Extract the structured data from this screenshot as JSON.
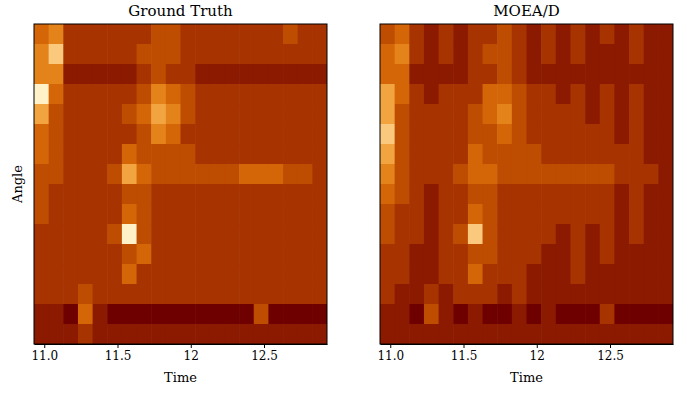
{
  "chart_data": [
    {
      "type": "heatmap",
      "title": "Ground Truth",
      "x_label": "Time",
      "y_label": "Angle",
      "tick_labels": "x",
      "x": [
        10.98,
        11.08,
        11.18,
        11.28,
        11.38,
        11.48,
        11.58,
        11.68,
        11.78,
        11.88,
        11.98,
        12.08,
        12.18,
        12.28,
        12.38,
        12.48,
        12.58,
        12.68,
        12.78,
        12.88
      ],
      "xlim": [
        10.93,
        12.93
      ],
      "xticks": [
        {
          "value": 11,
          "label": "11.0"
        },
        11.5,
        12,
        12.5
      ],
      "values": [
        [
          5,
          6,
          3,
          3,
          3,
          3,
          3,
          3,
          4,
          4,
          3,
          3,
          3,
          3,
          3,
          3,
          3,
          4,
          3,
          3
        ],
        [
          6,
          8,
          3,
          3,
          3,
          3,
          3,
          4,
          4,
          4,
          3,
          3,
          3,
          3,
          3,
          3,
          3,
          3,
          3,
          3
        ],
        [
          6,
          6,
          2,
          2,
          2,
          2,
          2,
          3,
          4,
          3,
          3,
          2,
          2,
          2,
          2,
          2,
          2,
          2,
          2,
          2
        ],
        [
          9,
          5,
          3,
          3,
          3,
          3,
          3,
          4,
          6,
          5,
          4,
          3,
          3,
          3,
          3,
          3,
          3,
          3,
          3,
          3
        ],
        [
          7,
          4,
          3,
          3,
          3,
          3,
          4,
          5,
          7,
          6,
          4,
          3,
          3,
          3,
          3,
          3,
          3,
          3,
          3,
          3
        ],
        [
          5,
          4,
          3,
          3,
          3,
          3,
          3,
          4,
          6,
          5,
          3,
          3,
          3,
          3,
          3,
          3,
          3,
          3,
          3,
          3
        ],
        [
          5,
          4,
          3,
          3,
          3,
          3,
          5,
          4,
          4,
          4,
          4,
          3,
          3,
          3,
          3,
          3,
          3,
          3,
          3,
          3
        ],
        [
          4,
          4,
          3,
          3,
          3,
          4,
          7,
          5,
          4,
          4,
          4,
          4,
          4,
          4,
          5,
          5,
          5,
          4,
          4,
          3
        ],
        [
          4,
          3,
          3,
          3,
          3,
          3,
          4,
          4,
          3,
          3,
          3,
          3,
          3,
          3,
          3,
          3,
          3,
          3,
          3,
          3
        ],
        [
          4,
          3,
          3,
          3,
          3,
          3,
          5,
          4,
          3,
          3,
          3,
          3,
          3,
          3,
          3,
          3,
          3,
          3,
          3,
          3
        ],
        [
          3,
          3,
          3,
          3,
          3,
          4,
          9,
          4,
          3,
          3,
          3,
          3,
          3,
          3,
          3,
          3,
          3,
          3,
          3,
          3
        ],
        [
          3,
          3,
          3,
          3,
          3,
          3,
          4,
          5,
          3,
          3,
          3,
          3,
          3,
          3,
          3,
          3,
          3,
          3,
          3,
          3
        ],
        [
          3,
          3,
          3,
          3,
          3,
          3,
          5,
          3,
          3,
          3,
          3,
          3,
          3,
          3,
          3,
          3,
          3,
          3,
          3,
          3
        ],
        [
          3,
          3,
          3,
          4,
          3,
          3,
          3,
          3,
          3,
          3,
          3,
          3,
          3,
          3,
          3,
          3,
          3,
          3,
          3,
          3
        ],
        [
          2,
          2,
          1,
          5,
          2,
          1,
          1,
          1,
          1,
          1,
          1,
          1,
          1,
          1,
          1,
          4,
          1,
          1,
          1,
          1
        ],
        [
          2,
          2,
          2,
          3,
          2,
          2,
          2,
          2,
          2,
          2,
          2,
          2,
          2,
          2,
          2,
          2,
          2,
          2,
          2,
          2
        ]
      ]
    },
    {
      "type": "heatmap",
      "title": "MOEA/D",
      "x_label": "Time",
      "tick_labels": "x",
      "x": [
        10.98,
        11.08,
        11.18,
        11.28,
        11.38,
        11.48,
        11.58,
        11.68,
        11.78,
        11.88,
        11.98,
        12.08,
        12.18,
        12.28,
        12.38,
        12.48,
        12.58,
        12.68,
        12.78,
        12.88
      ],
      "xlim": [
        10.93,
        12.93
      ],
      "xticks": [
        {
          "value": 11,
          "label": "11.0"
        },
        11.5,
        12,
        12.5
      ],
      "values": [
        [
          4,
          5,
          3,
          2,
          3,
          2,
          3,
          3,
          4,
          3,
          2,
          3,
          2,
          3,
          2,
          3,
          2,
          3,
          2,
          2
        ],
        [
          5,
          6,
          3,
          2,
          3,
          2,
          3,
          4,
          4,
          3,
          2,
          3,
          2,
          3,
          2,
          2,
          2,
          3,
          2,
          2
        ],
        [
          5,
          5,
          2,
          2,
          2,
          2,
          3,
          3,
          4,
          3,
          2,
          2,
          2,
          2,
          2,
          2,
          2,
          2,
          2,
          2
        ],
        [
          7,
          5,
          3,
          2,
          3,
          3,
          3,
          5,
          5,
          4,
          3,
          3,
          2,
          3,
          2,
          3,
          2,
          3,
          2,
          2
        ],
        [
          7,
          4,
          3,
          3,
          3,
          3,
          4,
          5,
          6,
          4,
          3,
          3,
          3,
          3,
          2,
          3,
          2,
          3,
          2,
          2
        ],
        [
          8,
          4,
          3,
          3,
          3,
          3,
          4,
          4,
          5,
          4,
          3,
          3,
          3,
          3,
          3,
          3,
          2,
          3,
          2,
          2
        ],
        [
          7,
          4,
          3,
          3,
          3,
          3,
          5,
          4,
          4,
          4,
          4,
          3,
          3,
          3,
          3,
          3,
          3,
          3,
          2,
          2
        ],
        [
          6,
          4,
          3,
          3,
          3,
          4,
          5,
          5,
          4,
          4,
          4,
          4,
          4,
          4,
          4,
          4,
          3,
          3,
          3,
          2
        ],
        [
          5,
          4,
          3,
          2,
          3,
          3,
          4,
          4,
          3,
          3,
          3,
          3,
          3,
          3,
          3,
          3,
          2,
          3,
          2,
          2
        ],
        [
          4,
          3,
          3,
          2,
          3,
          3,
          5,
          4,
          3,
          3,
          3,
          3,
          3,
          3,
          3,
          3,
          2,
          3,
          2,
          2
        ],
        [
          4,
          3,
          3,
          2,
          3,
          4,
          8,
          4,
          3,
          3,
          3,
          3,
          2,
          3,
          2,
          3,
          2,
          3,
          2,
          2
        ],
        [
          3,
          3,
          2,
          2,
          3,
          3,
          4,
          4,
          3,
          3,
          3,
          2,
          2,
          3,
          2,
          3,
          2,
          2,
          2,
          2
        ],
        [
          3,
          3,
          2,
          2,
          3,
          3,
          5,
          3,
          3,
          3,
          2,
          2,
          2,
          3,
          2,
          2,
          2,
          2,
          2,
          2
        ],
        [
          3,
          2,
          2,
          3,
          2,
          3,
          3,
          3,
          2,
          3,
          2,
          2,
          2,
          2,
          2,
          2,
          2,
          2,
          2,
          2
        ],
        [
          2,
          2,
          1,
          4,
          2,
          1,
          2,
          1,
          1,
          2,
          1,
          2,
          1,
          1,
          1,
          3,
          1,
          1,
          1,
          1
        ],
        [
          2,
          2,
          2,
          2,
          2,
          2,
          2,
          2,
          2,
          2,
          2,
          2,
          2,
          2,
          2,
          2,
          2,
          2,
          2,
          2
        ]
      ]
    }
  ]
}
